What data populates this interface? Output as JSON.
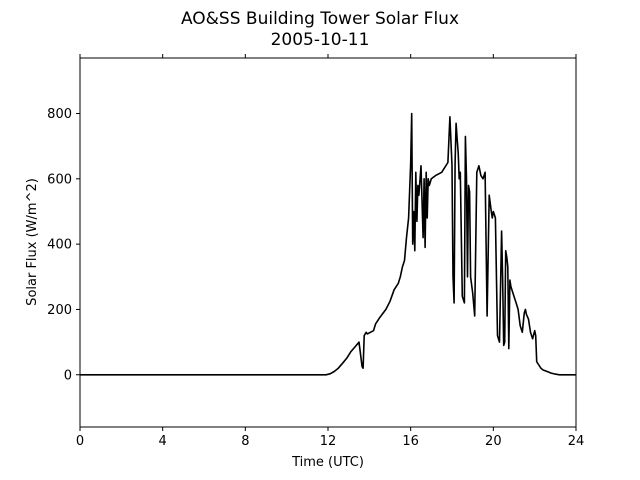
{
  "chart_data": {
    "type": "line",
    "title": "AO&SS Building Tower Solar Flux",
    "subtitle": "2005-10-11",
    "xlabel": "Time (UTC)",
    "ylabel": "Solar Flux (W/m^2)",
    "xlim": [
      0,
      24
    ],
    "ylim": [
      -160,
      970
    ],
    "xticks": [
      0,
      4,
      8,
      12,
      16,
      20,
      24
    ],
    "yticks": [
      0,
      200,
      400,
      600,
      800
    ],
    "grid": false,
    "legend": "none",
    "line_color": "#000000",
    "series": [
      {
        "x": [
          0,
          11.9,
          12.1,
          12.3,
          12.5,
          12.7,
          12.9,
          13.1,
          13.3,
          13.5,
          13.65,
          13.7,
          13.75,
          13.8,
          13.85,
          13.9,
          14.2,
          14.3,
          14.5,
          14.8,
          15.0,
          15.2,
          15.4,
          15.5,
          15.6,
          15.7,
          15.8,
          15.9,
          16.0,
          16.05,
          16.1,
          16.15,
          16.2,
          16.25,
          16.3,
          16.35,
          16.4,
          16.5,
          16.6,
          16.65,
          16.7,
          16.75,
          16.8,
          16.85,
          16.9,
          17.0,
          17.2,
          17.5,
          17.8,
          17.9,
          18.0,
          18.05,
          18.1,
          18.15,
          18.2,
          18.25,
          18.3,
          18.35,
          18.4,
          18.5,
          18.6,
          18.65,
          18.7,
          18.75,
          18.8,
          18.85,
          18.9,
          19.0,
          19.1,
          19.2,
          19.3,
          19.4,
          19.5,
          19.6,
          19.7,
          19.8,
          19.9,
          19.95,
          20.0,
          20.05,
          20.1,
          20.2,
          20.3,
          20.4,
          20.45,
          20.5,
          20.55,
          20.6,
          20.65,
          20.7,
          20.75,
          20.8,
          20.85,
          20.9,
          21.0,
          21.1,
          21.2,
          21.3,
          21.4,
          21.5,
          21.55,
          21.6,
          21.7,
          21.8,
          21.9,
          22.0,
          22.05,
          22.1,
          22.2,
          22.3,
          22.4,
          22.6,
          22.8,
          23.0,
          23.2,
          23.4,
          23.6,
          24.0
        ],
        "y": [
          0,
          0,
          3,
          10,
          20,
          35,
          50,
          70,
          85,
          100,
          25,
          20,
          120,
          125,
          130,
          125,
          135,
          155,
          175,
          200,
          225,
          260,
          280,
          300,
          330,
          350,
          420,
          480,
          650,
          800,
          400,
          500,
          380,
          620,
          470,
          580,
          550,
          640,
          420,
          600,
          390,
          620,
          480,
          600,
          580,
          600,
          610,
          620,
          650,
          790,
          640,
          300,
          220,
          650,
          770,
          720,
          680,
          600,
          620,
          240,
          220,
          730,
          600,
          300,
          580,
          560,
          300,
          250,
          180,
          620,
          640,
          610,
          600,
          620,
          180,
          550,
          500,
          480,
          500,
          490,
          480,
          120,
          100,
          440,
          300,
          90,
          100,
          380,
          360,
          330,
          80,
          290,
          270,
          260,
          240,
          220,
          200,
          150,
          130,
          190,
          200,
          185,
          170,
          130,
          110,
          135,
          120,
          40,
          30,
          20,
          15,
          10,
          5,
          2,
          0,
          0,
          0,
          0
        ]
      }
    ]
  }
}
